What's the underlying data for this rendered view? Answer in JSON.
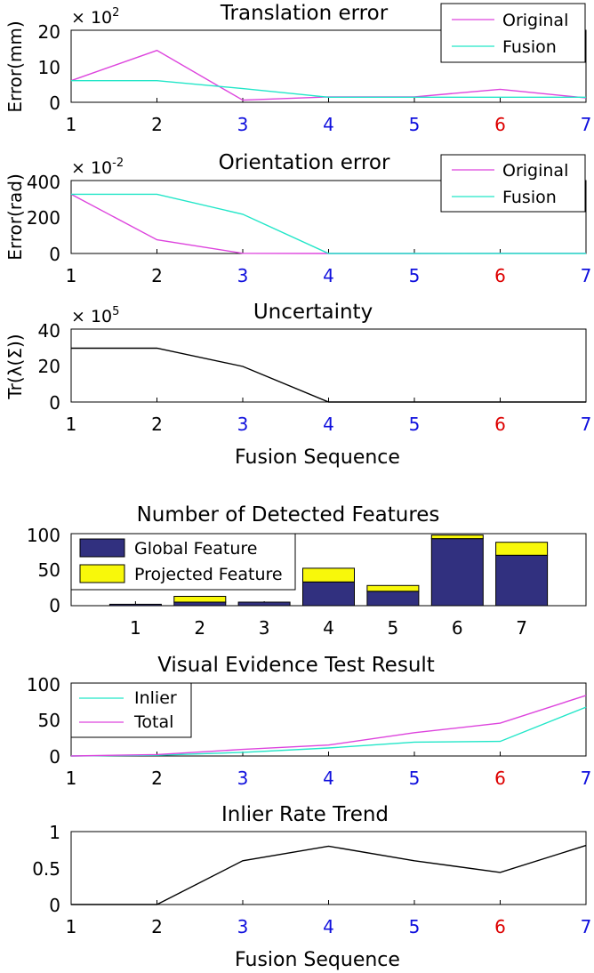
{
  "colors": {
    "original": "#dd44dd",
    "fusion": "#22e6c8",
    "black": "#000000",
    "global_feature": "#31307f",
    "projected_feature": "#f8f80a",
    "tick_blue": "#1010dd",
    "tick_red": "#dd0000"
  },
  "shared": {
    "seq_ticks": [
      "1",
      "2",
      "3",
      "4",
      "5",
      "6",
      "7"
    ],
    "seq_tick_colors": [
      "black",
      "black",
      "tick_blue",
      "tick_blue",
      "tick_blue",
      "tick_red",
      "tick_blue"
    ],
    "x_label": "Fusion Sequence"
  },
  "chart_data": [
    {
      "id": "translation",
      "type": "line",
      "title": "Translation error",
      "ylabel": "Error(mm)",
      "y_exponent_base": "× 10",
      "y_exponent_power": "2",
      "x": [
        1,
        2,
        3,
        4,
        5,
        6,
        7
      ],
      "xlim": [
        1,
        7
      ],
      "ylim": [
        0,
        20
      ],
      "yticks": [
        0,
        10,
        20
      ],
      "grid": false,
      "legend_position": "top-right",
      "series": [
        {
          "name": "Original",
          "color_key": "original",
          "values": [
            6,
            14.4,
            0.6,
            1.5,
            1.5,
            3.6,
            1.2
          ]
        },
        {
          "name": "Fusion",
          "color_key": "fusion",
          "values": [
            6,
            6,
            3.8,
            1.4,
            1.4,
            1.4,
            1.4
          ]
        }
      ]
    },
    {
      "id": "orientation",
      "type": "line",
      "title": "Orientation error",
      "ylabel": "Error(rad)",
      "y_exponent_base": "× 10",
      "y_exponent_power": "-2",
      "x": [
        1,
        2,
        3,
        4,
        5,
        6,
        7
      ],
      "xlim": [
        1,
        7
      ],
      "ylim": [
        0,
        400
      ],
      "yticks": [
        0,
        200,
        400
      ],
      "grid": false,
      "legend_position": "top-right",
      "series": [
        {
          "name": "Original",
          "color_key": "original",
          "values": [
            325,
            75,
            1,
            0,
            0,
            1,
            1
          ]
        },
        {
          "name": "Fusion",
          "color_key": "fusion",
          "values": [
            325,
            325,
            215,
            0,
            0,
            0,
            0
          ]
        }
      ]
    },
    {
      "id": "uncertainty",
      "type": "line",
      "title": "Uncertainty",
      "ylabel": "Tr(λ(Σ))",
      "y_exponent_base": "× 10",
      "y_exponent_power": "5",
      "x_label": "Fusion Sequence",
      "x": [
        1,
        2,
        3,
        4,
        5,
        6,
        7
      ],
      "xlim": [
        1,
        7
      ],
      "ylim": [
        0,
        40
      ],
      "yticks": [
        0,
        20,
        40
      ],
      "grid": false,
      "series": [
        {
          "color_key": "black",
          "values": [
            29.5,
            29.5,
            19.5,
            0,
            0,
            0,
            0
          ]
        }
      ]
    },
    {
      "id": "features",
      "type": "bar",
      "stacked": true,
      "title": "Number of Detected Features",
      "categories": [
        "1",
        "2",
        "3",
        "4",
        "5",
        "6",
        "7"
      ],
      "xlim": [
        0,
        8
      ],
      "ylim": [
        0,
        100
      ],
      "yticks": [
        0,
        50,
        100
      ],
      "grid": false,
      "legend_position": "top-left",
      "series": [
        {
          "name": "Global Feature",
          "color_key": "global_feature",
          "values": [
            2,
            5,
            5,
            33,
            20,
            93,
            70
          ]
        },
        {
          "name": "Projected Feature",
          "color_key": "projected_feature",
          "values": [
            0,
            8,
            0,
            19,
            8,
            5,
            18
          ]
        }
      ]
    },
    {
      "id": "visual_evidence",
      "type": "line",
      "title": "Visual Evidence Test Result",
      "x": [
        1,
        2,
        3,
        4,
        5,
        6,
        7
      ],
      "xlim": [
        1,
        7
      ],
      "ylim": [
        0,
        100
      ],
      "yticks": [
        0,
        50,
        100
      ],
      "grid": false,
      "legend_position": "top-left",
      "series": [
        {
          "name": "Inlier",
          "color_key": "fusion",
          "values": [
            0,
            1,
            5,
            11,
            19,
            20,
            67
          ]
        },
        {
          "name": "Total",
          "color_key": "original",
          "values": [
            0,
            2,
            9,
            15,
            32,
            45,
            83
          ]
        }
      ]
    },
    {
      "id": "inlier_rate",
      "type": "line",
      "title": "Inlier Rate Trend",
      "x_label": "Fusion Sequence",
      "x": [
        1,
        2,
        3,
        4,
        5,
        6,
        7
      ],
      "xlim": [
        1,
        7
      ],
      "ylim": [
        0,
        1
      ],
      "yticks": [
        0,
        0.5,
        1
      ],
      "ytick_labels": [
        "0",
        "0.5",
        "1"
      ],
      "grid": false,
      "series": [
        {
          "color_key": "black",
          "values": [
            0,
            0,
            0.6,
            0.8,
            0.6,
            0.44,
            0.81
          ]
        }
      ]
    }
  ]
}
